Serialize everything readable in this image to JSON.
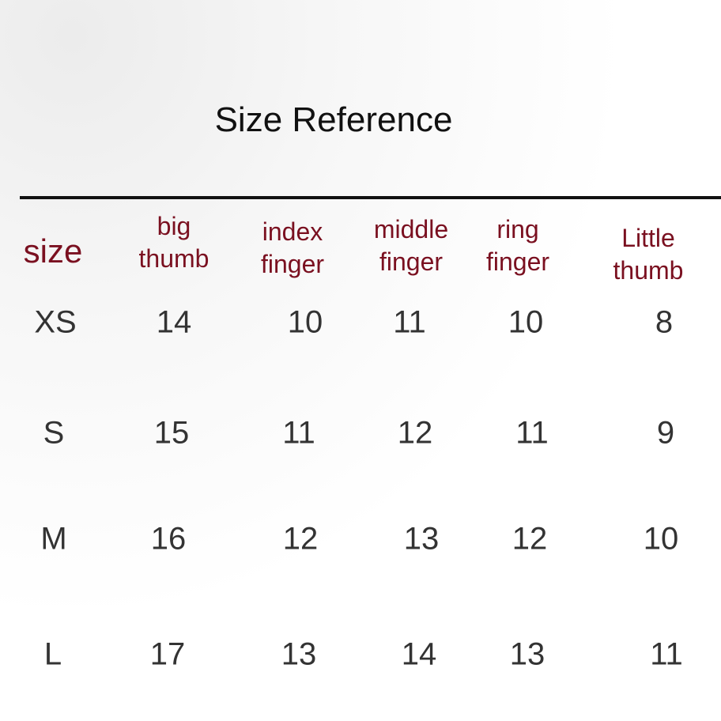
{
  "title": "Size Reference",
  "table": {
    "headers": [
      "size",
      "big thumb",
      "index finger",
      "middle finger",
      "ring finger",
      "Little thumb"
    ],
    "header_lines": [
      [
        "size"
      ],
      [
        "big",
        "thumb"
      ],
      [
        "index",
        "finger"
      ],
      [
        "middle",
        "finger"
      ],
      [
        "ring",
        "finger"
      ],
      [
        "Little",
        "thumb"
      ]
    ],
    "rows": [
      [
        "XS",
        "14",
        "10",
        "11",
        "10",
        "8"
      ],
      [
        "S",
        "15",
        "11",
        "12",
        "11",
        "9"
      ],
      [
        "M",
        "16",
        "12",
        "13",
        "12",
        "10"
      ],
      [
        "L",
        "17",
        "13",
        "14",
        "13",
        "11"
      ]
    ]
  },
  "colors": {
    "header": "#7a1020",
    "values": "#333333",
    "title": "#111111"
  }
}
